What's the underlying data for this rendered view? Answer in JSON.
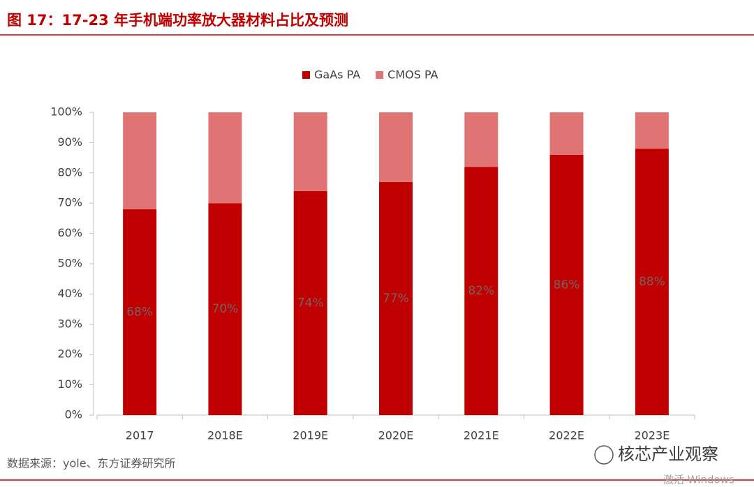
{
  "chart_data": {
    "type": "stacked_bar",
    "title": "图 17：17-23 年手机端功率放大器材料占比及预测",
    "categories": [
      "2017",
      "2018E",
      "2019E",
      "2020E",
      "2021E",
      "2022E",
      "2023E"
    ],
    "series": [
      {
        "name": "GaAs PA",
        "color": "#c00000",
        "values": [
          68,
          70,
          74,
          77,
          82,
          86,
          88
        ],
        "value_labels": [
          "68%",
          "70%",
          "74%",
          "77%",
          "82%",
          "86%",
          "88%"
        ]
      },
      {
        "name": "CMOS PA",
        "color": "#e07474",
        "values": [
          32,
          30,
          26,
          23,
          18,
          14,
          12
        ]
      }
    ],
    "ylim": [
      0,
      100
    ],
    "yticks": [
      {
        "value": 0,
        "label": "0%"
      },
      {
        "value": 10,
        "label": "10%"
      },
      {
        "value": 20,
        "label": "20%"
      },
      {
        "value": 30,
        "label": "30%"
      },
      {
        "value": 40,
        "label": "40%"
      },
      {
        "value": 50,
        "label": "50%"
      },
      {
        "value": 60,
        "label": "60%"
      },
      {
        "value": 70,
        "label": "70%"
      },
      {
        "value": 80,
        "label": "80%"
      },
      {
        "value": 90,
        "label": "90%"
      },
      {
        "value": 100,
        "label": "100%"
      }
    ],
    "legend": "top",
    "source": "数据来源：yole、东方证券研究所",
    "watermark": "核芯产业观察",
    "os_notice": "激活 Windows"
  }
}
